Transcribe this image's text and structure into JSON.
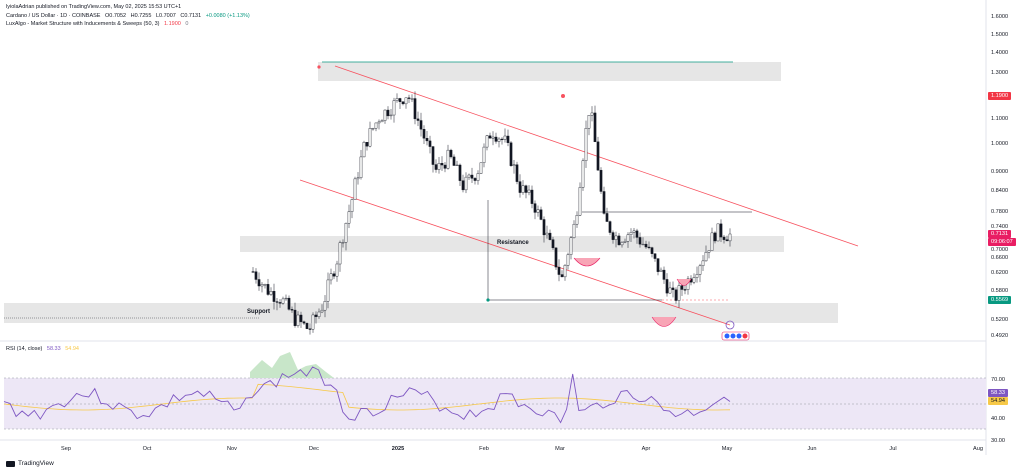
{
  "publisher_line": "lyiolaAdrian published on TradingView.com, May 02, 2025 15:53 UTC+1",
  "symbol_line": {
    "name": "Cardano / US Dollar · 1D · COINBASE",
    "open": "O0.7052",
    "high": "H0.7255",
    "low": "L0.7007",
    "close": "C0.7131",
    "change": "+0.0080 (+1.13%)"
  },
  "indicator_line": {
    "name": "LuxAlgo - Market Structure with Inducements & Sweeps (50, 3)",
    "value": "1.1900",
    "extra": "0"
  },
  "rsi_line": {
    "name": "RSI (14, close)",
    "rsi": "58.33",
    "ma": "54.94"
  },
  "price_axis": [
    "1.6000",
    "1.5000",
    "1.4000",
    "1.3000",
    "1.2000",
    "1.1000",
    "1.0000",
    "0.9000",
    "0.8400",
    "0.7800",
    "0.7400",
    "0.7000",
    "0.6600",
    "0.6200",
    "0.5800",
    "0.5200",
    "0.4920"
  ],
  "rsi_axis": [
    "70.00",
    "40.00",
    "30.00"
  ],
  "price_tags": {
    "high_tag": "1.1900",
    "last_price": "0.7131",
    "countdown": "09:06:07",
    "low_tag": "0.5569"
  },
  "rsi_tags": {
    "rsi": "58.33",
    "ma": "54.94"
  },
  "annotations": {
    "resistance": "Resistance",
    "support": "Support"
  },
  "time_axis": [
    "Sep",
    "Oct",
    "Nov",
    "Dec",
    "2025",
    "Feb",
    "Mar",
    "Apr",
    "May",
    "Jun",
    "Jul",
    "Aug"
  ],
  "footer": "TradingView",
  "colors": {
    "up": "#089981",
    "down": "#f23645",
    "candle": "#131722",
    "channel": "#f7525f",
    "zone": "#e6e6e6",
    "rsi_line": "#7e57c2",
    "rsi_ma": "#f7c948",
    "rsi_band": "#ede7f6",
    "last_price": "#e91e63"
  },
  "chart_data": {
    "type": "candlestick",
    "x": [
      "Sep",
      "Oct",
      "Nov",
      "Dec",
      "2025",
      "Feb",
      "Mar",
      "Apr",
      "May"
    ],
    "close_path": [
      0.62,
      0.58,
      0.56,
      0.52,
      0.5,
      0.55,
      0.65,
      0.8,
      1.0,
      1.1,
      1.15,
      1.2,
      1.05,
      0.9,
      0.95,
      0.85,
      0.9,
      1.05,
      1.0,
      0.85,
      0.8,
      0.7,
      0.6,
      0.75,
      1.15,
      0.75,
      0.7,
      0.72,
      0.68,
      0.62,
      0.56,
      0.6,
      0.65,
      0.72,
      0.71
    ]
  }
}
